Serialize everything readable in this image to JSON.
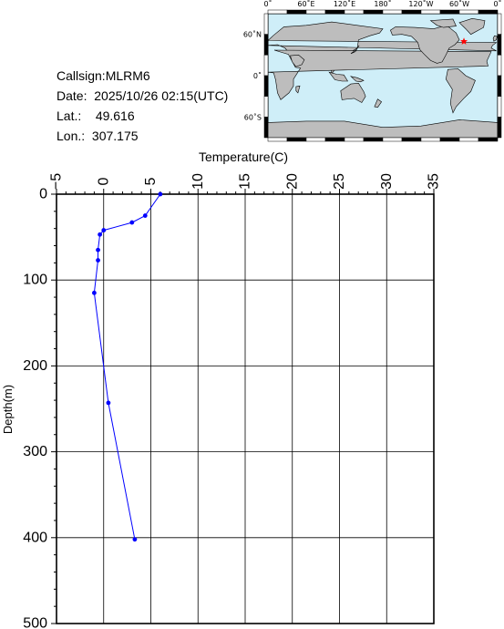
{
  "info": {
    "callsign_label": "Callsign:",
    "callsign": "MLRM6",
    "date_label": "Date:",
    "date": "2025/10/26 02:15(UTC)",
    "lat_label": "Lat.:",
    "lat": "49.616",
    "lon_label": "Lon.:",
    "lon": "307.175"
  },
  "map": {
    "top_labels": [
      "0˚",
      "60˚E",
      "120˚E",
      "180˚",
      "120˚W",
      "60˚W",
      "0˚"
    ],
    "side_labels": [
      "60˚N",
      "0˚",
      "60˚S"
    ],
    "ocean_color": "#cfeef8",
    "land_color": "#bdbdbd",
    "marker_color": "#ff0000",
    "marker_icon": "star-icon"
  },
  "chart_data": {
    "type": "line",
    "xlabel": "Temperature(C)",
    "ylabel": "Depth(m)",
    "xlim": [
      -5,
      35
    ],
    "ylim": [
      0,
      500
    ],
    "x_ticks": [
      -5,
      0,
      5,
      10,
      15,
      20,
      25,
      30,
      35
    ],
    "y_ticks": [
      0,
      100,
      200,
      300,
      400,
      500
    ],
    "line_color": "#0000ff",
    "grid": true,
    "series": [
      {
        "points": [
          {
            "t": 6.0,
            "d": 0
          },
          {
            "t": 4.4,
            "d": 25
          },
          {
            "t": 3.0,
            "d": 33
          },
          {
            "t": 0.0,
            "d": 42
          },
          {
            "t": -0.4,
            "d": 47
          },
          {
            "t": -0.6,
            "d": 65
          },
          {
            "t": -0.6,
            "d": 77
          },
          {
            "t": -1.0,
            "d": 115
          },
          {
            "t": 0.5,
            "d": 243
          },
          {
            "t": 3.3,
            "d": 402
          }
        ]
      }
    ]
  }
}
